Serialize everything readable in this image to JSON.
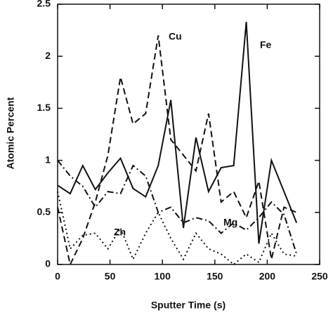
{
  "chart_data": {
    "type": "line",
    "x_label": "Sputter Time (s)",
    "y_label": "Atomic Percent",
    "x": [
      0,
      12,
      24,
      36,
      48,
      60,
      72,
      84,
      96,
      108,
      120,
      132,
      144,
      156,
      168,
      180,
      192,
      204,
      216,
      228
    ],
    "series": [
      {
        "name": "Fe",
        "color": "#111111",
        "linestyle": "solid",
        "values": [
          0.76,
          0.68,
          0.95,
          0.72,
          0.88,
          1.02,
          0.73,
          0.65,
          0.95,
          1.58,
          0.35,
          1.22,
          0.7,
          0.93,
          0.95,
          2.33,
          0.2,
          1.0,
          0.7,
          0.4
        ]
      },
      {
        "name": "Cu",
        "color": "#111111",
        "linestyle": "dashed",
        "values": [
          0.55,
          0.0,
          0.25,
          0.6,
          1.05,
          1.8,
          1.35,
          1.45,
          2.2,
          1.2,
          1.05,
          0.9,
          1.45,
          0.6,
          0.7,
          0.45,
          0.8,
          0.05,
          0.55,
          0.5
        ]
      },
      {
        "name": "Mg",
        "color": "#111111",
        "linestyle": "dashdot",
        "values": [
          1.0,
          0.85,
          0.75,
          0.55,
          0.7,
          0.68,
          0.95,
          0.85,
          0.5,
          0.55,
          0.4,
          0.45,
          0.42,
          0.3,
          0.4,
          0.33,
          0.45,
          0.6,
          0.48,
          0.1
        ]
      },
      {
        "name": "Zn",
        "color": "#111111",
        "linestyle": "dotted",
        "values": [
          0.7,
          0.15,
          0.28,
          0.3,
          0.15,
          0.35,
          0.05,
          0.3,
          0.5,
          0.25,
          0.05,
          0.3,
          0.15,
          0.1,
          0.0,
          0.1,
          0.02,
          0.3,
          0.1,
          0.08
        ]
      }
    ],
    "xlim": [
      0,
      250
    ],
    "xticks": [
      0,
      50,
      100,
      150,
      200,
      250
    ],
    "ylim": [
      0,
      2.5
    ],
    "yticks": [
      0,
      0.5,
      1,
      1.5,
      2,
      2.5
    ]
  }
}
